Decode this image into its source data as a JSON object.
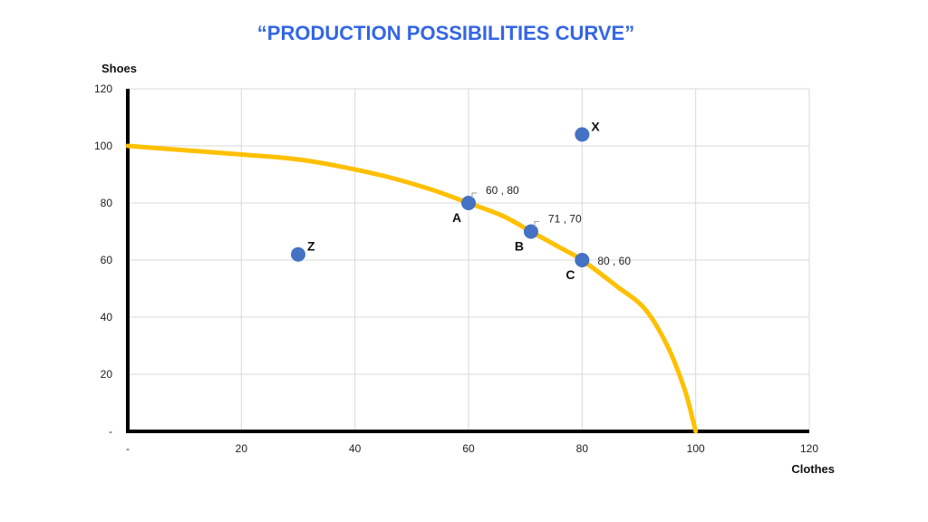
{
  "chart_data": {
    "type": "line",
    "title": "“PRODUCTION POSSIBILITIES CURVE”",
    "xlabel": "Clothes",
    "ylabel": "Shoes",
    "xlim": [
      0,
      120
    ],
    "ylim": [
      0,
      120
    ],
    "x_ticks": [
      {
        "value": 0,
        "label": "-"
      },
      {
        "value": 20,
        "label": "20"
      },
      {
        "value": 40,
        "label": "40"
      },
      {
        "value": 60,
        "label": "60"
      },
      {
        "value": 80,
        "label": "80"
      },
      {
        "value": 100,
        "label": "100"
      },
      {
        "value": 120,
        "label": "120"
      }
    ],
    "y_ticks": [
      {
        "value": 0,
        "label": "-"
      },
      {
        "value": 20,
        "label": "20"
      },
      {
        "value": 40,
        "label": "40"
      },
      {
        "value": 60,
        "label": "60"
      },
      {
        "value": 80,
        "label": "80"
      },
      {
        "value": 100,
        "label": "100"
      },
      {
        "value": 120,
        "label": "120"
      }
    ],
    "grid": true,
    "curve": {
      "color": "#FFC000",
      "points": [
        [
          0,
          100
        ],
        [
          10,
          98.5
        ],
        [
          20,
          97
        ],
        [
          31,
          95
        ],
        [
          44,
          90
        ],
        [
          53,
          85
        ],
        [
          60,
          80
        ],
        [
          66,
          75.5
        ],
        [
          71,
          70
        ],
        [
          76,
          64.5
        ],
        [
          80,
          60
        ],
        [
          86,
          51
        ],
        [
          91,
          43
        ],
        [
          95,
          30
        ],
        [
          98,
          15
        ],
        [
          99.5,
          4
        ],
        [
          100,
          0
        ]
      ]
    },
    "points": [
      {
        "name": "A",
        "x": 60,
        "y": 80,
        "data_label": "60 ,  80",
        "label_pos": "bottom-left",
        "data_label_pos": "top-right"
      },
      {
        "name": "B",
        "x": 71,
        "y": 70,
        "data_label": "71 ,  70",
        "label_pos": "bottom-left",
        "data_label_pos": "top-right"
      },
      {
        "name": "C",
        "x": 80,
        "y": 60,
        "data_label": "80 ,  60",
        "label_pos": "bottom-left",
        "data_label_pos": "right"
      },
      {
        "name": "X",
        "x": 80,
        "y": 104,
        "data_label": "",
        "label_pos": "top-right",
        "data_label_pos": ""
      },
      {
        "name": "Z",
        "x": 30,
        "y": 62,
        "data_label": "",
        "label_pos": "top-right",
        "data_label_pos": ""
      }
    ],
    "colors": {
      "title": "#3366E6",
      "point": "#4472C4",
      "axis": "#000000",
      "grid": "#D9D9D9"
    }
  }
}
